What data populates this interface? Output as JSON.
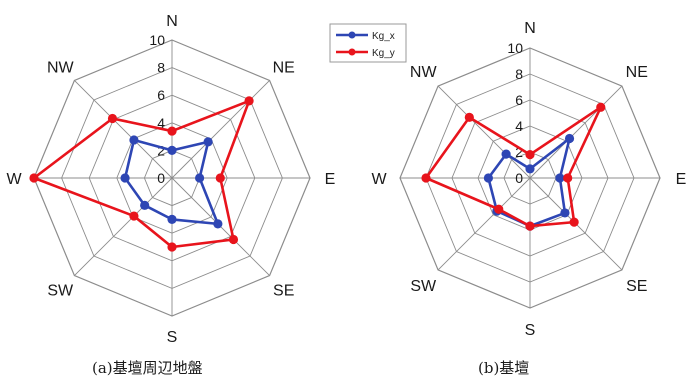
{
  "chart_data": [
    {
      "type": "radar",
      "caption": "(a)基壇周辺地盤",
      "directions": [
        "N",
        "NE",
        "E",
        "SE",
        "S",
        "SW",
        "W",
        "NW"
      ],
      "rlim": [
        0,
        10
      ],
      "rticks": [
        0,
        2,
        4,
        6,
        8,
        10
      ],
      "grid": true,
      "series": [
        {
          "name": "Kg_x",
          "color": "#2e46b4",
          "values": [
            2.0,
            3.7,
            2.0,
            4.7,
            3.0,
            2.8,
            3.4,
            3.9
          ]
        },
        {
          "name": "Kg_y",
          "color": "#e8141c",
          "values": [
            3.4,
            7.9,
            3.5,
            6.3,
            5.0,
            3.9,
            10.0,
            6.1
          ]
        }
      ]
    },
    {
      "type": "radar",
      "caption": "(b)基壇",
      "directions": [
        "N",
        "NE",
        "E",
        "SE",
        "S",
        "SW",
        "W",
        "NW"
      ],
      "rlim": [
        0,
        10
      ],
      "rticks": [
        0,
        2,
        4,
        6,
        8,
        10
      ],
      "grid": true,
      "series": [
        {
          "name": "Kg_x",
          "color": "#2e46b4",
          "values": [
            0.7,
            4.3,
            2.3,
            3.8,
            3.7,
            3.6,
            3.2,
            2.6
          ]
        },
        {
          "name": "Kg_y",
          "color": "#e8141c",
          "values": [
            1.8,
            7.7,
            2.9,
            4.8,
            3.7,
            3.4,
            8.0,
            6.6
          ]
        }
      ]
    }
  ],
  "legend": {
    "position": "top-center",
    "items": [
      {
        "label": "Kg_x",
        "color": "#2e46b4"
      },
      {
        "label": "Kg_y",
        "color": "#e8141c"
      }
    ]
  }
}
